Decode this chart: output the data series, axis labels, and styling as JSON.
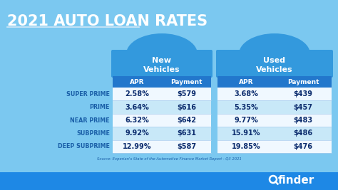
{
  "title": "2021 AUTO LOAN RATES",
  "bg_color": "#7bc8f0",
  "dark_header_color": "#3399dd",
  "col_header_color": "#2277cc",
  "table_bg_white": "#f0f8ff",
  "table_bg_blue": "#c8e8f8",
  "divider_color": "#aaccee",
  "footer_color": "#1e88e5",
  "new_vehicles_label": "New\nVehicles",
  "used_vehicles_label": "Used\nVehicles",
  "row_labels": [
    "SUPER PRIME",
    "PRIME",
    "NEAR PRIME",
    "SUBPRIME",
    "DEEP SUBPRIME"
  ],
  "new_apr": [
    "2.58%",
    "3.64%",
    "6.32%",
    "9.92%",
    "12.99%"
  ],
  "new_payment": [
    "$579",
    "$616",
    "$642",
    "$631",
    "$587"
  ],
  "used_apr": [
    "3.68%",
    "5.35%",
    "9.77%",
    "15.91%",
    "19.85%"
  ],
  "used_payment": [
    "$439",
    "$457",
    "$483",
    "$486",
    "$476"
  ],
  "source_text": "Source: Experian's State of the Automotive Finance Market Report - Q3 2021",
  "white": "#ffffff",
  "label_color": "#1a5fa8",
  "data_color": "#0d2d6e",
  "underline_color": "#d0e8f8"
}
